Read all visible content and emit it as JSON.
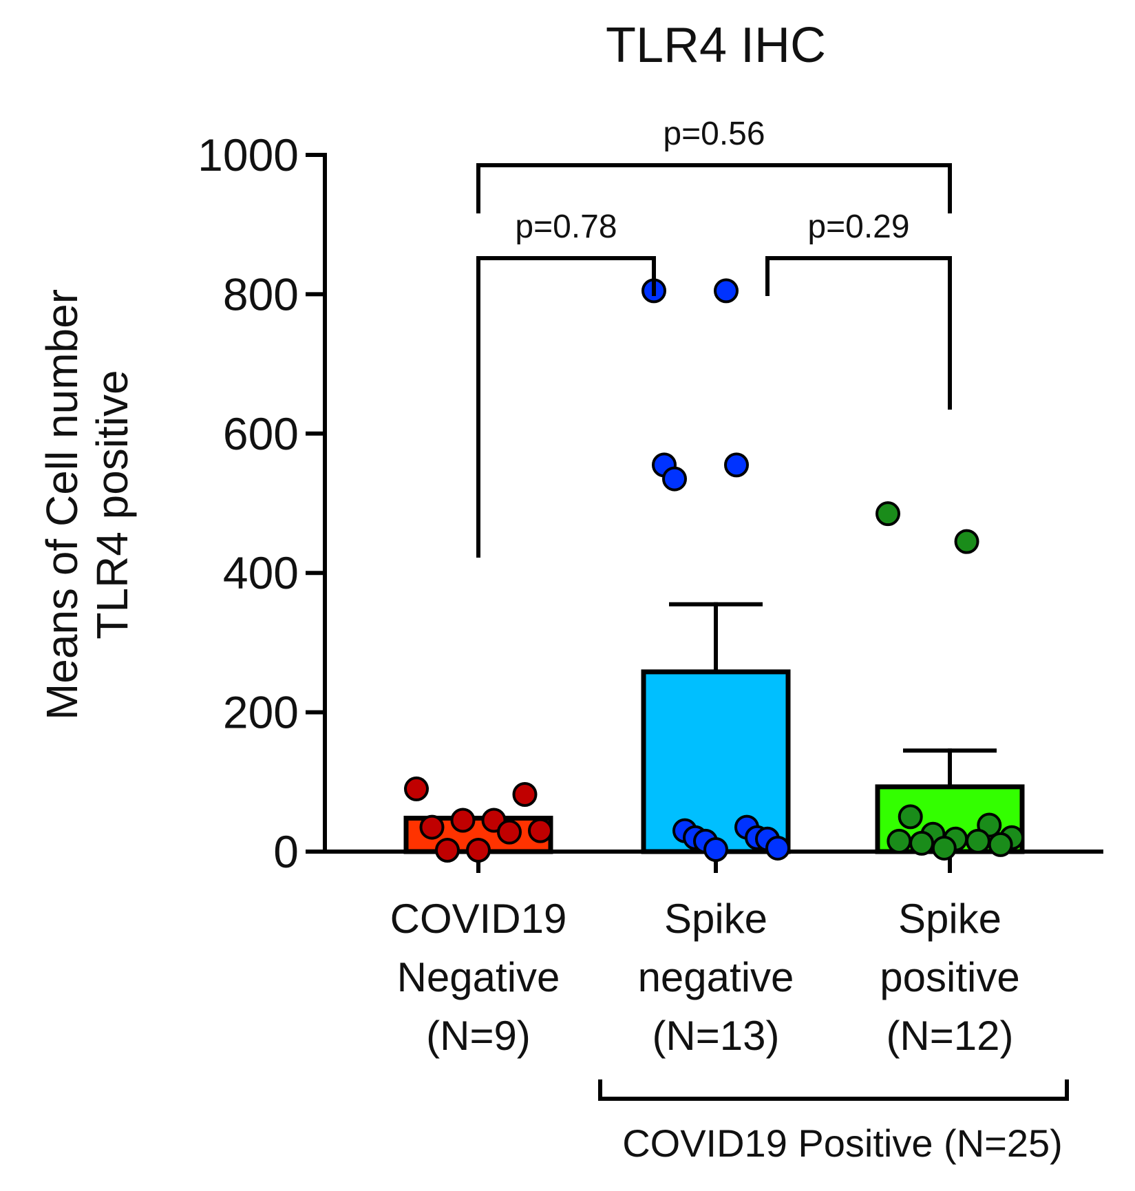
{
  "chart_data": {
    "type": "bar",
    "title": "TLR4 IHC",
    "ylabel_lines": [
      "Means of Cell number",
      "TLR4 positive"
    ],
    "ylim": [
      0,
      1000
    ],
    "yticks": [
      0,
      200,
      400,
      600,
      800,
      1000
    ],
    "categories": [
      {
        "lines": [
          "COVID19",
          "Negative",
          "(N=9)"
        ],
        "mean": 48,
        "sem": 0,
        "color": "#ff3300",
        "point_color": "#c00000",
        "points": [
          90,
          82,
          45,
          45,
          35,
          30,
          28,
          2,
          2
        ]
      },
      {
        "lines": [
          "Spike",
          "negative",
          "(N=13)"
        ],
        "mean": 258,
        "sem": 97,
        "color": "#00bfff",
        "point_color": "#0033ff",
        "points": [
          805,
          805,
          555,
          555,
          535,
          35,
          30,
          20,
          20,
          18,
          15,
          5,
          3
        ]
      },
      {
        "lines": [
          "Spike",
          "positive",
          "(N=12)"
        ],
        "mean": 93,
        "sem": 52,
        "color": "#33ff00",
        "point_color": "#1a8c1a",
        "points": [
          485,
          445,
          50,
          38,
          25,
          20,
          18,
          15,
          15,
          12,
          10,
          5
        ]
      }
    ],
    "comparisons": [
      {
        "from": 0,
        "to": 2,
        "label": "p=0.56"
      },
      {
        "from": 0,
        "to": 1,
        "label": "p=0.78"
      },
      {
        "from": 1,
        "to": 2,
        "label": "p=0.29"
      }
    ],
    "group_label": "COVID19 Positive (N=25)",
    "group_span": [
      1,
      2
    ],
    "grid": false,
    "legend": "none"
  }
}
